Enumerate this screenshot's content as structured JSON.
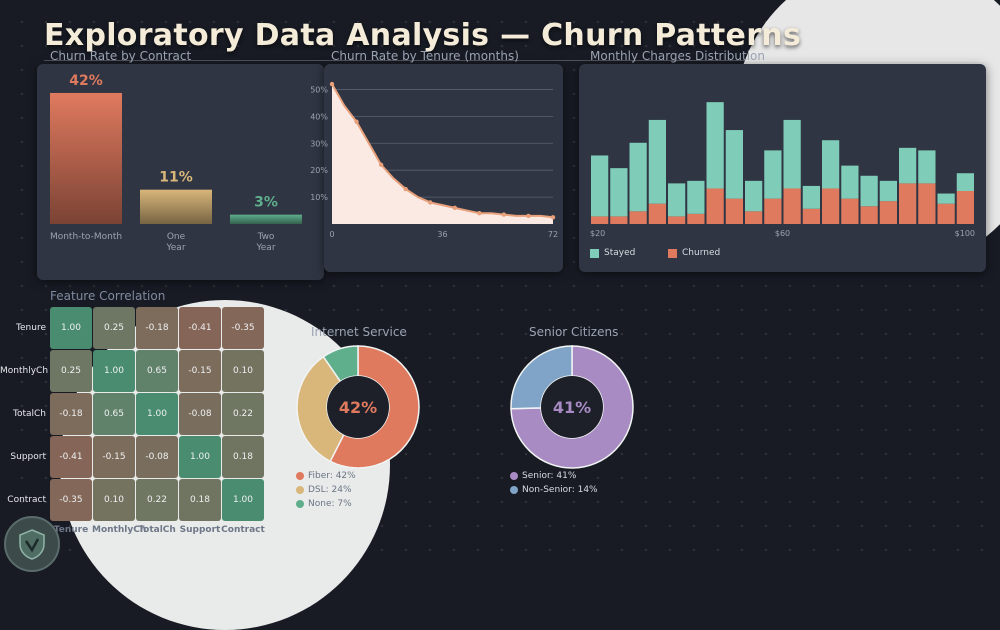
{
  "page": {
    "title": "Exploratory Data Analysis — Churn Patterns"
  },
  "colors": {
    "accent": "#e07a5f",
    "sand": "#d9b67a",
    "teal": "#5fae8c",
    "stayed": "#7fcdb8",
    "purple": "#a98bc4",
    "blue": "#7fa4c7"
  },
  "chart_data": [
    {
      "type": "bar",
      "title": "Churn Rate by Contract",
      "categories": [
        "Month-to-Month",
        "One Year",
        "Two Year"
      ],
      "values": [
        42,
        11,
        3
      ],
      "labels": [
        "42%",
        "11%",
        "3%"
      ],
      "colors": [
        "#e07a5f",
        "#d9b67a",
        "#5fae8c"
      ],
      "ylim": [
        0,
        50
      ]
    },
    {
      "type": "area",
      "title": "Churn Rate by Tenure (months)",
      "x": [
        0,
        4,
        8,
        12,
        16,
        20,
        24,
        28,
        32,
        36,
        40,
        44,
        48,
        52,
        56,
        60,
        64,
        68,
        72
      ],
      "y": [
        52,
        44,
        38,
        30,
        22,
        17,
        13,
        10,
        8,
        7,
        6,
        5,
        4,
        4,
        3.5,
        3,
        3,
        3,
        2.5
      ],
      "xticks": [
        "0",
        "36",
        "72"
      ],
      "yticks": [
        "10%",
        "20%",
        "30%",
        "40%",
        "50%"
      ],
      "xlim": [
        0,
        72
      ],
      "ylim": [
        0,
        55
      ],
      "grid": true
    },
    {
      "type": "bar",
      "stacked": true,
      "title": "Monthly Charges Distribution",
      "xticks": [
        "$20",
        "$60",
        "$100"
      ],
      "series": [
        {
          "name": "Stayed",
          "color": "#7fcdb8",
          "values": [
            24,
            19,
            27,
            33,
            13,
            13,
            34,
            27,
            12,
            19,
            27,
            9,
            19,
            13,
            12,
            8,
            14,
            13,
            4,
            7
          ]
        },
        {
          "name": "Churned",
          "color": "#e07a5f",
          "values": [
            3,
            3,
            5,
            8,
            3,
            4,
            14,
            10,
            5,
            10,
            14,
            6,
            14,
            10,
            7,
            9,
            16,
            16,
            8,
            13
          ]
        }
      ],
      "ylim": [
        0,
        52
      ],
      "legend": "bottom-left"
    },
    {
      "type": "heatmap",
      "title": "Feature Correlation",
      "rows": [
        "Tenure",
        "MonthlyCh",
        "TotalCh",
        "Support",
        "Contract"
      ],
      "cols": [
        "Tenure",
        "MonthlyCh",
        "TotalCh",
        "Support",
        "Contract"
      ],
      "values": [
        [
          1.0,
          0.25,
          -0.18,
          -0.41,
          -0.35
        ],
        [
          0.25,
          1.0,
          0.65,
          -0.15,
          0.1
        ],
        [
          -0.18,
          0.65,
          1.0,
          -0.08,
          0.22
        ],
        [
          -0.41,
          -0.15,
          -0.08,
          1.0,
          0.18
        ],
        [
          -0.35,
          0.1,
          0.22,
          0.18,
          1.0
        ]
      ]
    },
    {
      "type": "pie",
      "title": "Internet Service",
      "center_label": "42%",
      "slices": [
        {
          "name": "Fiber: 42%",
          "value": 42,
          "color": "#e07a5f"
        },
        {
          "name": "DSL: 24%",
          "value": 24,
          "color": "#d9b67a"
        },
        {
          "name": "None: 7%",
          "value": 7,
          "color": "#5fae8c"
        }
      ]
    },
    {
      "type": "pie",
      "title": "Senior Citizens",
      "center_label": "41%",
      "slices": [
        {
          "name": "Senior: 41%",
          "value": 41,
          "color": "#a98bc4"
        },
        {
          "name": "Non-Senior: 14%",
          "value": 14,
          "color": "#7fa4c7"
        }
      ]
    }
  ]
}
